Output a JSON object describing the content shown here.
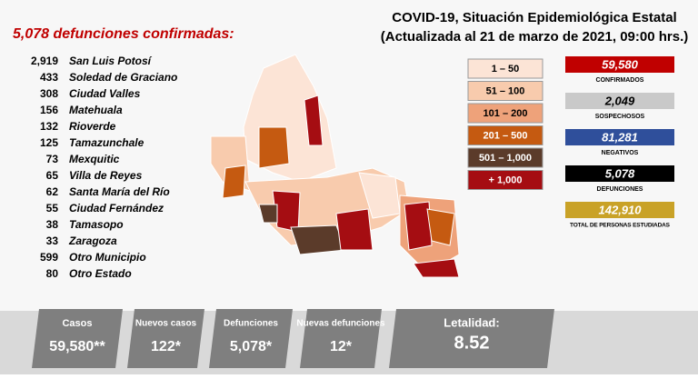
{
  "header": {
    "title": "COVID-19, Situación Epidemiológica Estatal",
    "subtitle": "(Actualizada al 21 de marzo de 2021, 09:00 hrs.)"
  },
  "headline": "5,078 defunciones confirmadas:",
  "municipalities": [
    {
      "value": "2,919",
      "name": "San Luis Potosí"
    },
    {
      "value": "433",
      "name": "Soledad de Graciano"
    },
    {
      "value": "308",
      "name": "Ciudad Valles"
    },
    {
      "value": "156",
      "name": "Matehuala"
    },
    {
      "value": "132",
      "name": "Rioverde"
    },
    {
      "value": "125",
      "name": "Tamazunchale"
    },
    {
      "value": "73",
      "name": "Mexquitic"
    },
    {
      "value": "65",
      "name": "Villa de Reyes"
    },
    {
      "value": "62",
      "name": "Santa María del Río"
    },
    {
      "value": "55",
      "name": "Ciudad Fernández"
    },
    {
      "value": "38",
      "name": "Tamasopo"
    },
    {
      "value": "33",
      "name": "Zaragoza"
    },
    {
      "value": "599",
      "name": "Otro Municipio"
    },
    {
      "value": "80",
      "name": "Otro Estado"
    }
  ],
  "legend": [
    {
      "label": "1 – 50",
      "color": "#fce4d6"
    },
    {
      "label": "51 – 100",
      "color": "#f8cbad"
    },
    {
      "label": "101 – 200",
      "color": "#eea27a"
    },
    {
      "label": "201 – 500",
      "color": "#c55a11"
    },
    {
      "label": "501 – 1,000",
      "color": "#5b3b2a"
    },
    {
      "label": "+ 1,000",
      "color": "#a50d12"
    }
  ],
  "stats": [
    {
      "value": "59,580",
      "label": "CONFIRMADOS",
      "color": "#c00000"
    },
    {
      "value": "2,049",
      "label": "SOSPECHOSOS",
      "color": "#c9c9c9"
    },
    {
      "value": "81,281",
      "label": "NEGATIVOS",
      "color": "#2f4f9b"
    },
    {
      "value": "5,078",
      "label": "DEFUNCIONES",
      "color": "#000000"
    },
    {
      "value": "142,910",
      "label": "TOTAL DE PERSONAS ESTUDIADAS",
      "color": "#c9a227"
    }
  ],
  "summary": [
    {
      "label": "Casos",
      "value": "59,580**"
    },
    {
      "label": "Nuevos casos",
      "value": "122*"
    },
    {
      "label": "Defunciones",
      "value": "5,078*"
    },
    {
      "label": "Nuevas defunciones",
      "value": "12*"
    },
    {
      "label": "Letalidad:",
      "value": "8.52"
    }
  ]
}
